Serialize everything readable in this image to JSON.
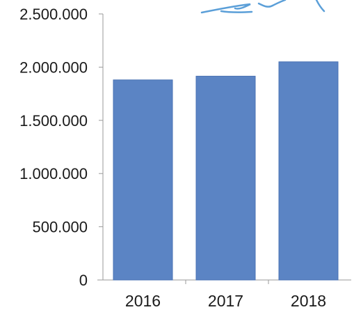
{
  "chart_data": {
    "type": "bar",
    "categories": [
      "2016",
      "2017",
      "2018"
    ],
    "values": [
      1880000,
      1915000,
      2050000
    ],
    "ylim": [
      0,
      2500000
    ],
    "yticks": [
      "0",
      "500.000",
      "1.000.000",
      "1.500.000",
      "2.000.000",
      "2.500.000"
    ],
    "ytick_values": [
      0,
      500000,
      1000000,
      1500000,
      2000000,
      2500000
    ],
    "grid": false,
    "legend": "none",
    "title": "",
    "xlabel": "",
    "ylabel": ""
  },
  "colors": {
    "bar": "#5b84c4",
    "bar_edge": "#4a72b3",
    "axis": "#9a9a9a",
    "scribble": "#5b9fd8"
  }
}
